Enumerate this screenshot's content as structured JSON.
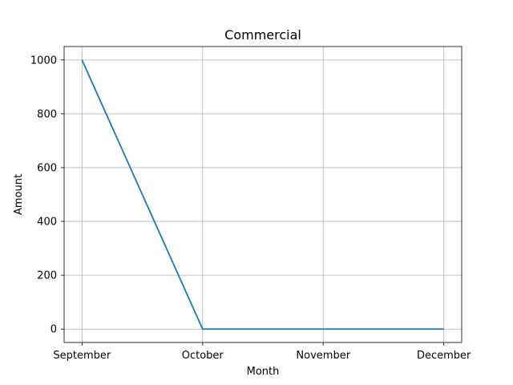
{
  "chart_data": {
    "type": "line",
    "title": "Commercial",
    "xlabel": "Month",
    "ylabel": "Amount",
    "categories": [
      "September",
      "October",
      "November",
      "December"
    ],
    "series": [
      {
        "color": "#1f77b4",
        "values": [
          1000,
          0,
          0,
          0
        ]
      }
    ],
    "ylim": [
      -50,
      1050
    ],
    "yticks": [
      0,
      200,
      400,
      600,
      800,
      1000
    ],
    "grid": true
  }
}
